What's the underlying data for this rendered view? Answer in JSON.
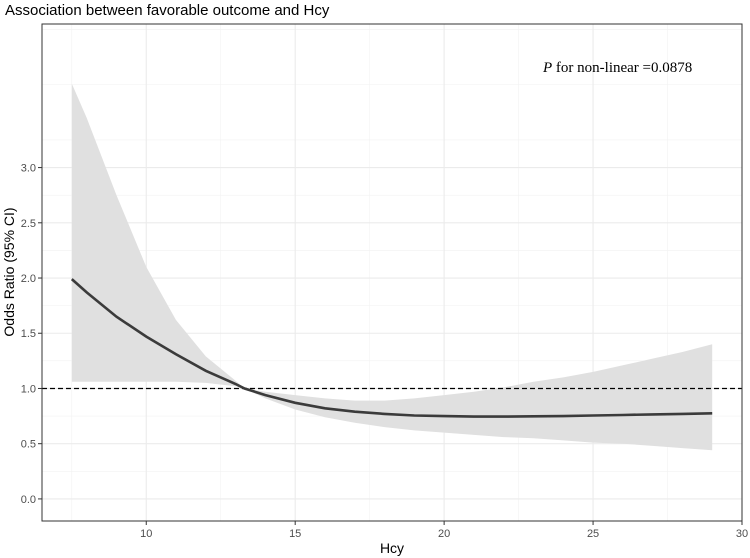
{
  "chart_data": {
    "type": "line",
    "title": "Association between favorable outcome and Hcy",
    "xlabel": "Hcy",
    "ylabel": "Odds Ratio (95% CI)",
    "xlim": [
      6.5,
      30
    ],
    "ylim": [
      -0.2,
      4.3
    ],
    "x_ticks": [
      10,
      15,
      20,
      25,
      30
    ],
    "y_ticks": [
      0.0,
      0.5,
      1.0,
      1.5,
      2.0,
      2.5,
      3.0
    ],
    "y_tick_labels": [
      "0.0",
      "0.5",
      "1.0",
      "1.5",
      "2.0",
      "2.5",
      "3.0"
    ],
    "reference_line": 1.0,
    "annotation": {
      "italic": "P",
      "text": " for non-linear =0.0878"
    },
    "grid": true,
    "series": [
      {
        "name": "Odds Ratio",
        "x": [
          7.5,
          8,
          9,
          10,
          11,
          12,
          13,
          13.3,
          14,
          15,
          16,
          17,
          18,
          19,
          20,
          21,
          22,
          23,
          24,
          25,
          26,
          27,
          28,
          29
        ],
        "y": [
          1.99,
          1.87,
          1.65,
          1.47,
          1.31,
          1.16,
          1.04,
          1.0,
          0.94,
          0.87,
          0.82,
          0.79,
          0.77,
          0.755,
          0.75,
          0.745,
          0.745,
          0.748,
          0.75,
          0.755,
          0.76,
          0.765,
          0.77,
          0.775
        ],
        "lower": [
          1.06,
          1.06,
          1.06,
          1.06,
          1.06,
          1.05,
          1.02,
          1.0,
          0.91,
          0.81,
          0.74,
          0.69,
          0.65,
          0.62,
          0.6,
          0.58,
          0.56,
          0.55,
          0.53,
          0.51,
          0.5,
          0.48,
          0.46,
          0.44
        ],
        "upper": [
          3.76,
          3.45,
          2.75,
          2.1,
          1.62,
          1.29,
          1.07,
          1.0,
          0.97,
          0.94,
          0.91,
          0.89,
          0.89,
          0.91,
          0.94,
          0.97,
          1.01,
          1.06,
          1.1,
          1.15,
          1.21,
          1.27,
          1.33,
          1.4
        ]
      }
    ]
  }
}
